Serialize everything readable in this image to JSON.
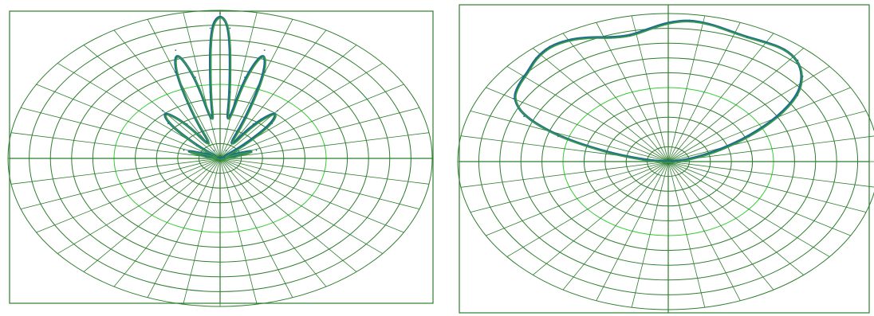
{
  "chart_data": [
    {
      "type": "polar",
      "title": "",
      "angle_unit": "deg",
      "angle_zero": "top",
      "rings": 10,
      "spokes_deg": 10,
      "colors": {
        "grid": "#2e7d2e",
        "grid_light": "#33cc33",
        "series": [
          "#1f6e8a",
          "#3a9a4a"
        ]
      },
      "series": [
        {
          "name": "",
          "points": [
            [
              -90,
              0
            ],
            [
              -80,
              0.07
            ],
            [
              -72,
              0.18
            ],
            [
              -66,
              0.08
            ],
            [
              -58,
              0.0
            ],
            [
              -52,
              0.14
            ],
            [
              -46,
              0.34
            ],
            [
              -40,
              0.42
            ],
            [
              -34,
              0.28
            ],
            [
              -28,
              0.06
            ],
            [
              -24,
              0.3
            ],
            [
              -20,
              0.62
            ],
            [
              -16,
              0.76
            ],
            [
              -12,
              0.56
            ],
            [
              -8,
              0.2
            ],
            [
              -6,
              0.45
            ],
            [
              -3,
              0.88
            ],
            [
              0,
              0.98
            ],
            [
              3,
              0.88
            ],
            [
              6,
              0.45
            ],
            [
              8,
              0.2
            ],
            [
              12,
              0.56
            ],
            [
              16,
              0.76
            ],
            [
              20,
              0.62
            ],
            [
              24,
              0.3
            ],
            [
              28,
              0.06
            ],
            [
              34,
              0.28
            ],
            [
              40,
              0.42
            ],
            [
              46,
              0.34
            ],
            [
              52,
              0.14
            ],
            [
              58,
              0.0
            ],
            [
              66,
              0.08
            ],
            [
              72,
              0.18
            ],
            [
              80,
              0.07
            ],
            [
              90,
              0
            ]
          ]
        }
      ]
    },
    {
      "type": "polar",
      "title": "",
      "angle_unit": "deg",
      "angle_zero": "top",
      "rings": 10,
      "spokes_deg": 10,
      "colors": {
        "grid": "#2e7d2e",
        "grid_light": "#33cc33",
        "series": [
          "#1f6e8a",
          "#3a9a4a"
        ]
      },
      "series": [
        {
          "name": "",
          "points": [
            [
              -90,
              0.02
            ],
            [
              -84,
              0.12
            ],
            [
              -78,
              0.3
            ],
            [
              -72,
              0.55
            ],
            [
              -66,
              0.75
            ],
            [
              -60,
              0.85
            ],
            [
              -54,
              0.88
            ],
            [
              -48,
              0.9
            ],
            [
              -42,
              0.94
            ],
            [
              -36,
              0.96
            ],
            [
              -30,
              0.95
            ],
            [
              -24,
              0.92
            ],
            [
              -18,
              0.88
            ],
            [
              -12,
              0.87
            ],
            [
              -6,
              0.9
            ],
            [
              0,
              0.94
            ],
            [
              6,
              0.96
            ],
            [
              12,
              0.95
            ],
            [
              18,
              0.93
            ],
            [
              24,
              0.92
            ],
            [
              30,
              0.93
            ],
            [
              36,
              0.94
            ],
            [
              42,
              0.92
            ],
            [
              48,
              0.86
            ],
            [
              54,
              0.76
            ],
            [
              60,
              0.6
            ],
            [
              66,
              0.42
            ],
            [
              72,
              0.26
            ],
            [
              78,
              0.14
            ],
            [
              84,
              0.06
            ],
            [
              90,
              0.02
            ]
          ]
        }
      ]
    }
  ]
}
